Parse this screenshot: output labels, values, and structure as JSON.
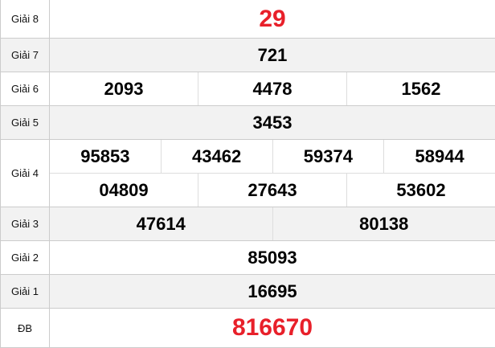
{
  "colors": {
    "highlight": "#e8202a",
    "alt_row": "#f2f2f2"
  },
  "prizes": [
    {
      "label": "Giải 8",
      "rows": [
        [
          "29"
        ]
      ],
      "highlight": true
    },
    {
      "label": "Giải 7",
      "rows": [
        [
          "721"
        ]
      ]
    },
    {
      "label": "Giải 6",
      "rows": [
        [
          "2093",
          "4478",
          "1562"
        ]
      ]
    },
    {
      "label": "Giải 5",
      "rows": [
        [
          "3453"
        ]
      ]
    },
    {
      "label": "Giải 4",
      "rows": [
        [
          "95853",
          "43462",
          "59374",
          "58944"
        ],
        [
          "04809",
          "27643",
          "53602"
        ]
      ]
    },
    {
      "label": "Giải 3",
      "rows": [
        [
          "47614",
          "80138"
        ]
      ]
    },
    {
      "label": "Giải 2",
      "rows": [
        [
          "85093"
        ]
      ]
    },
    {
      "label": "Giải 1",
      "rows": [
        [
          "16695"
        ]
      ]
    },
    {
      "label": "ĐB",
      "rows": [
        [
          "816670"
        ]
      ],
      "highlight": true
    }
  ]
}
